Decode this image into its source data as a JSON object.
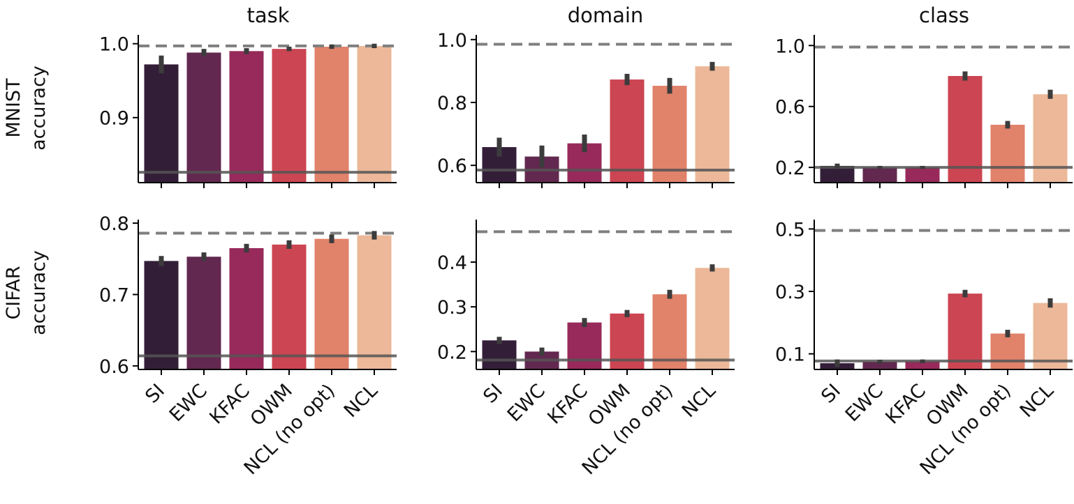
{
  "chart_data": {
    "type": "bar",
    "columns": [
      "task",
      "domain",
      "class"
    ],
    "rows": [
      {
        "label_line1": "MNIST",
        "label_line2": "accuracy"
      },
      {
        "label_line1": "CIFAR",
        "label_line2": "accuracy"
      }
    ],
    "categories": [
      "SI",
      "EWC",
      "KFAC",
      "OWM",
      "NCL (no opt)",
      "NCL"
    ],
    "colors": [
      "#331e38",
      "#632850",
      "#972a5a",
      "#cc4552",
      "#e1826a",
      "#ecb899"
    ],
    "reference_line_color": "#555555",
    "dashed_line_color": "#7f7f7f",
    "errorbar_color": "#3c3c3c",
    "panels": [
      {
        "row": 0,
        "col": 0,
        "ylim": [
          0.812,
          1.012
        ],
        "yticks": [
          0.9,
          1.0
        ],
        "tick_labels": [
          "0.9",
          "1.0"
        ],
        "values": [
          0.972,
          0.988,
          0.99,
          0.993,
          0.996,
          0.997
        ],
        "errors": [
          0.012,
          0.005,
          0.004,
          0.003,
          0.003,
          0.003
        ],
        "solid_line": 0.826,
        "dashed_line": 0.997
      },
      {
        "row": 0,
        "col": 1,
        "ylim": [
          0.545,
          1.015
        ],
        "yticks": [
          0.6,
          0.8,
          1.0
        ],
        "tick_labels": [
          "0.6",
          "0.8",
          "1.0"
        ],
        "values": [
          0.658,
          0.628,
          0.67,
          0.873,
          0.853,
          0.915
        ],
        "errors": [
          0.03,
          0.035,
          0.028,
          0.018,
          0.025,
          0.014
        ],
        "solid_line": 0.585,
        "dashed_line": 0.985
      },
      {
        "row": 0,
        "col": 2,
        "ylim": [
          0.1,
          1.07
        ],
        "yticks": [
          0.2,
          0.6,
          1.0
        ],
        "tick_labels": [
          "0.2",
          "0.6",
          "1.0"
        ],
        "values": [
          0.21,
          0.2,
          0.2,
          0.8,
          0.48,
          0.68
        ],
        "errors": [
          0.015,
          0.01,
          0.01,
          0.03,
          0.025,
          0.03
        ],
        "solid_line": 0.2,
        "dashed_line": 0.99
      },
      {
        "row": 1,
        "col": 0,
        "ylim": [
          0.595,
          0.805
        ],
        "yticks": [
          0.6,
          0.7,
          0.8
        ],
        "tick_labels": [
          "0.6",
          "0.7",
          "0.8"
        ],
        "values": [
          0.747,
          0.753,
          0.765,
          0.77,
          0.778,
          0.783
        ],
        "errors": [
          0.007,
          0.006,
          0.006,
          0.006,
          0.006,
          0.006
        ],
        "solid_line": 0.614,
        "dashed_line": 0.786
      },
      {
        "row": 1,
        "col": 1,
        "ylim": [
          0.16,
          0.495
        ],
        "yticks": [
          0.2,
          0.3,
          0.4
        ],
        "tick_labels": [
          "0.2",
          "0.3",
          "0.4"
        ],
        "values": [
          0.225,
          0.2,
          0.265,
          0.285,
          0.328,
          0.387
        ],
        "errors": [
          0.008,
          0.009,
          0.01,
          0.008,
          0.01,
          0.008
        ],
        "solid_line": 0.181,
        "dashed_line": 0.468
      },
      {
        "row": 1,
        "col": 2,
        "ylim": [
          0.05,
          0.53
        ],
        "yticks": [
          0.1,
          0.3,
          0.5
        ],
        "tick_labels": [
          "0.1",
          "0.3",
          "0.5"
        ],
        "values": [
          0.07,
          0.075,
          0.076,
          0.293,
          0.165,
          0.263
        ],
        "errors": [
          0.012,
          0.006,
          0.006,
          0.012,
          0.012,
          0.015
        ],
        "solid_line": 0.077,
        "dashed_line": 0.495
      }
    ]
  }
}
